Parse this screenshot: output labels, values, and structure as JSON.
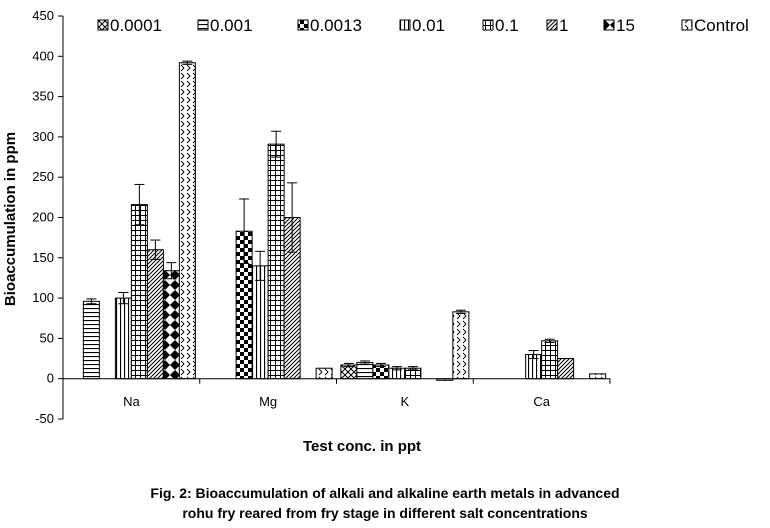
{
  "caption": {
    "line1": "Fig. 2: Bioaccumulation of alkali and alkaline earth metals in advanced",
    "line2": "rohu fry reared from fry stage in different salt concentrations"
  },
  "chart_data": {
    "type": "bar",
    "xlabel": "Test conc. in ppt",
    "ylabel": "Bioaccumulation in ppm",
    "ylim": [
      -50,
      450
    ],
    "yticks": [
      450,
      400,
      350,
      300,
      250,
      200,
      150,
      100,
      50,
      0,
      -50
    ],
    "categories": [
      "Na",
      "Mg",
      "K",
      "Ca"
    ],
    "legend_position": "top",
    "grid": false,
    "series": [
      {
        "name": "0.0001",
        "pattern": "diag-cross",
        "values": [
          0,
          0,
          17,
          0
        ],
        "errors": [
          0,
          0,
          2,
          0
        ]
      },
      {
        "name": "0.001",
        "pattern": "hlines",
        "values": [
          96,
          0,
          20,
          0
        ],
        "errors": [
          3,
          0,
          2,
          0
        ]
      },
      {
        "name": "0.0013",
        "pattern": "checker",
        "values": [
          0,
          183,
          17,
          0
        ],
        "errors": [
          0,
          40,
          2,
          0
        ]
      },
      {
        "name": "0.01",
        "pattern": "vlines",
        "values": [
          100,
          140,
          13,
          30
        ],
        "errors": [
          7,
          18,
          2,
          5
        ]
      },
      {
        "name": "0.1",
        "pattern": "grid",
        "values": [
          216,
          291,
          13,
          47
        ],
        "errors": [
          25,
          16,
          2,
          2
        ]
      },
      {
        "name": "1",
        "pattern": "diag",
        "values": [
          160,
          200,
          0,
          25
        ],
        "errors": [
          12,
          43,
          0,
          0
        ]
      },
      {
        "name": "15",
        "pattern": "diamonds",
        "values": [
          134,
          0,
          -2,
          0
        ],
        "errors": [
          10,
          0,
          0,
          0
        ]
      },
      {
        "name": "Control",
        "pattern": "chevron",
        "values": [
          392,
          13,
          83,
          6
        ],
        "errors": [
          2,
          0,
          2,
          0
        ]
      }
    ]
  }
}
